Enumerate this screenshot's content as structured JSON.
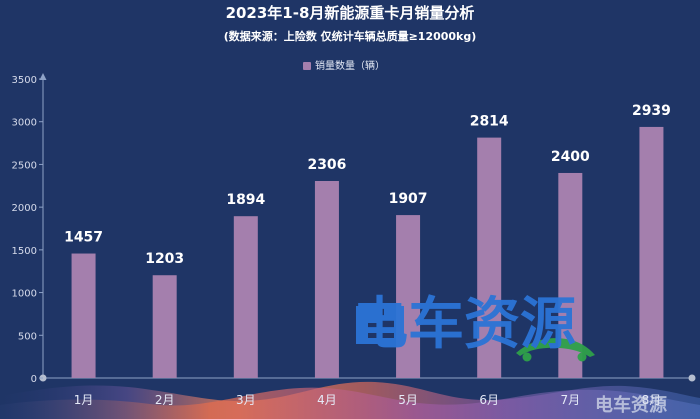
{
  "chart_data": {
    "type": "bar",
    "title": "2023年1-8月新能源重卡月销量分析",
    "subtitle": "(数据来源：上险数  仅统计车辆总质量≥12000kg)",
    "legend": {
      "label": "销量数量（辆）",
      "placement": "top-center"
    },
    "categories": [
      "1月",
      "2月",
      "3月",
      "4月",
      "5月",
      "6月",
      "7月",
      "8月"
    ],
    "series": [
      {
        "name": "销量数量（辆）",
        "values": [
          1457,
          1203,
          1894,
          2306,
          1907,
          2814,
          2400,
          2939
        ]
      }
    ],
    "yticks": [
      0,
      500,
      1000,
      1500,
      2000,
      2500,
      3000,
      3500
    ],
    "ylim": [
      0,
      3500
    ],
    "grid": false,
    "bar_color": "#a47fad",
    "text_color": "#ffffff",
    "axis_color": "#8fa3c7"
  },
  "watermark": {
    "main_text": "电车资源",
    "corner_text": "电车资源"
  },
  "colors": {
    "background": "#1f3566",
    "watermark_blue": "#2b74d6",
    "watermark_green": "#33a84a"
  }
}
